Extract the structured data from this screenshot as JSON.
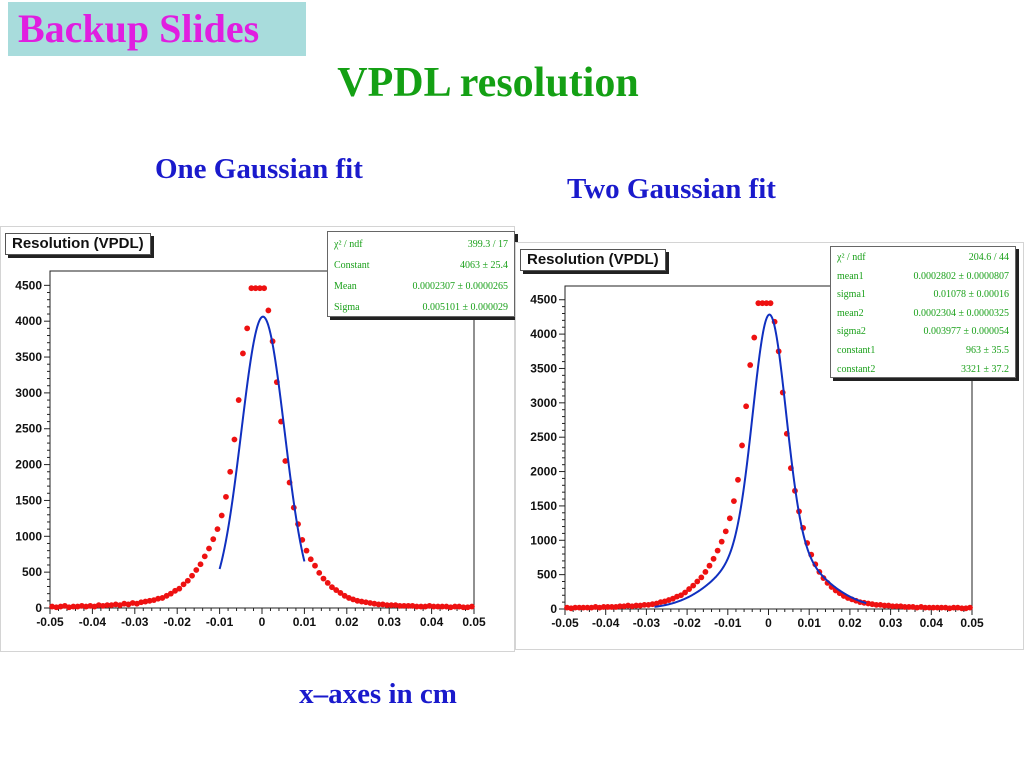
{
  "slide": {
    "tag": "Backup Slides",
    "title": "VPDL resolution",
    "footer": "x–axes in cm",
    "colors": {
      "tag_bg": "#a8dcdc",
      "tag_text": "#e01ee0",
      "title": "#14a014",
      "subtitle": "#1a1acc",
      "points": "#ee1111",
      "fit": "#1030c0",
      "stats_text": "#1aa01a"
    }
  },
  "panels": [
    {
      "subtitle": "One Gaussian fit",
      "plot_title": "Resolution (VPDL)",
      "stats": [
        {
          "label": "χ² / ndf",
          "value": "399.3 / 17"
        },
        {
          "label": "Constant",
          "value": "4063 ± 25.4"
        },
        {
          "label": "Mean",
          "value": "0.0002307 ± 0.0000265"
        },
        {
          "label": "Sigma",
          "value": "0.005101 ± 0.000029"
        }
      ]
    },
    {
      "subtitle": "Two Gaussian fit",
      "plot_title": "Resolution (VPDL)",
      "stats": [
        {
          "label": "χ² / ndf",
          "value": "204.6 / 44"
        },
        {
          "label": "mean1",
          "value": "0.0002802 ± 0.0000807"
        },
        {
          "label": "sigma1",
          "value": "0.01078 ± 0.00016"
        },
        {
          "label": "mean2",
          "value": "0.0002304 ± 0.0000325"
        },
        {
          "label": "sigma2",
          "value": "0.003977 ± 0.000054"
        },
        {
          "label": "constant1",
          "value": "963 ± 35.5"
        },
        {
          "label": "constant2",
          "value": "3321 ± 37.2"
        }
      ]
    }
  ],
  "chart_data": [
    {
      "type": "scatter",
      "title": "Resolution (VPDL)",
      "xlabel": "",
      "ylabel": "",
      "xlim": [
        -0.05,
        0.05
      ],
      "ylim": [
        0,
        4700
      ],
      "xticks": [
        "-0.05",
        "-0.04",
        "-0.03",
        "-0.02",
        "-0.01",
        "0",
        "0.01",
        "0.02",
        "0.03",
        "0.04",
        "0.05"
      ],
      "yticks": [
        "0",
        "500",
        "1000",
        "1500",
        "2000",
        "2500",
        "3000",
        "3500",
        "4000",
        "4500"
      ],
      "grid": false,
      "fit": {
        "function": "gauss",
        "constant": 4063,
        "mean": 0.0002307,
        "sigma": 0.005101,
        "range": [
          -0.01,
          0.01
        ]
      },
      "points": [
        [
          -0.0495,
          20
        ],
        [
          -0.0485,
          10
        ],
        [
          -0.0475,
          20
        ],
        [
          -0.0465,
          30
        ],
        [
          -0.0455,
          10
        ],
        [
          -0.0445,
          20
        ],
        [
          -0.0435,
          20
        ],
        [
          -0.0425,
          30
        ],
        [
          -0.0415,
          20
        ],
        [
          -0.0405,
          30
        ],
        [
          -0.0395,
          20
        ],
        [
          -0.0385,
          40
        ],
        [
          -0.0375,
          30
        ],
        [
          -0.0365,
          40
        ],
        [
          -0.0355,
          40
        ],
        [
          -0.0345,
          50
        ],
        [
          -0.0335,
          40
        ],
        [
          -0.0325,
          60
        ],
        [
          -0.0315,
          50
        ],
        [
          -0.0305,
          70
        ],
        [
          -0.0295,
          60
        ],
        [
          -0.0285,
          80
        ],
        [
          -0.0275,
          90
        ],
        [
          -0.0265,
          100
        ],
        [
          -0.0255,
          110
        ],
        [
          -0.0245,
          130
        ],
        [
          -0.0235,
          140
        ],
        [
          -0.0225,
          170
        ],
        [
          -0.0215,
          200
        ],
        [
          -0.0205,
          240
        ],
        [
          -0.0195,
          270
        ],
        [
          -0.0185,
          330
        ],
        [
          -0.0175,
          380
        ],
        [
          -0.0165,
          450
        ],
        [
          -0.0155,
          530
        ],
        [
          -0.0145,
          610
        ],
        [
          -0.0135,
          720
        ],
        [
          -0.0125,
          830
        ],
        [
          -0.0115,
          960
        ],
        [
          -0.0105,
          1100
        ],
        [
          -0.0095,
          1290
        ],
        [
          -0.0085,
          1550
        ],
        [
          -0.0075,
          1900
        ],
        [
          -0.0065,
          2350
        ],
        [
          -0.0055,
          2900
        ],
        [
          -0.0045,
          3550
        ],
        [
          -0.0035,
          3900
        ],
        [
          -0.0025,
          4460
        ],
        [
          -0.0015,
          4460
        ],
        [
          -0.0005,
          4460
        ],
        [
          0.0005,
          4460
        ],
        [
          0.0015,
          4150
        ],
        [
          0.0025,
          3720
        ],
        [
          0.0035,
          3150
        ],
        [
          0.0045,
          2600
        ],
        [
          0.0055,
          2050
        ],
        [
          0.0065,
          1750
        ],
        [
          0.0075,
          1400
        ],
        [
          0.0085,
          1170
        ],
        [
          0.0095,
          950
        ],
        [
          0.0105,
          800
        ],
        [
          0.0115,
          680
        ],
        [
          0.0125,
          590
        ],
        [
          0.0135,
          490
        ],
        [
          0.0145,
          410
        ],
        [
          0.0155,
          350
        ],
        [
          0.0165,
          290
        ],
        [
          0.0175,
          250
        ],
        [
          0.0185,
          210
        ],
        [
          0.0195,
          170
        ],
        [
          0.0205,
          140
        ],
        [
          0.0215,
          120
        ],
        [
          0.0225,
          100
        ],
        [
          0.0235,
          90
        ],
        [
          0.0245,
          80
        ],
        [
          0.0255,
          70
        ],
        [
          0.0265,
          60
        ],
        [
          0.0275,
          50
        ],
        [
          0.0285,
          50
        ],
        [
          0.0295,
          40
        ],
        [
          0.0305,
          40
        ],
        [
          0.0315,
          40
        ],
        [
          0.0325,
          30
        ],
        [
          0.0335,
          30
        ],
        [
          0.0345,
          30
        ],
        [
          0.0355,
          30
        ],
        [
          0.0365,
          20
        ],
        [
          0.0375,
          20
        ],
        [
          0.0385,
          20
        ],
        [
          0.0395,
          30
        ],
        [
          0.0405,
          20
        ],
        [
          0.0415,
          20
        ],
        [
          0.0425,
          20
        ],
        [
          0.0435,
          20
        ],
        [
          0.0445,
          10
        ],
        [
          0.0455,
          20
        ],
        [
          0.0465,
          20
        ],
        [
          0.0475,
          10
        ],
        [
          0.0485,
          10
        ],
        [
          0.0495,
          20
        ]
      ]
    },
    {
      "type": "scatter",
      "title": "Resolution (VPDL)",
      "xlabel": "",
      "ylabel": "",
      "xlim": [
        -0.05,
        0.05
      ],
      "ylim": [
        0,
        4700
      ],
      "xticks": [
        "-0.05",
        "-0.04",
        "-0.03",
        "-0.02",
        "-0.01",
        "0",
        "0.01",
        "0.02",
        "0.03",
        "0.04",
        "0.05"
      ],
      "yticks": [
        "0",
        "500",
        "1000",
        "1500",
        "2000",
        "2500",
        "3000",
        "3500",
        "4000",
        "4500"
      ],
      "grid": false,
      "fit": {
        "function": "double-gauss",
        "constant1": 963,
        "mean1": 0.0002802,
        "sigma1": 0.01078,
        "constant2": 3321,
        "mean2": 0.0002304,
        "sigma2": 0.003977,
        "range": [
          -0.028,
          0.024
        ]
      },
      "points": [
        [
          -0.0495,
          20
        ],
        [
          -0.0485,
          10
        ],
        [
          -0.0475,
          20
        ],
        [
          -0.0465,
          20
        ],
        [
          -0.0455,
          20
        ],
        [
          -0.0445,
          20
        ],
        [
          -0.0435,
          20
        ],
        [
          -0.0425,
          30
        ],
        [
          -0.0415,
          20
        ],
        [
          -0.0405,
          30
        ],
        [
          -0.0395,
          30
        ],
        [
          -0.0385,
          30
        ],
        [
          -0.0375,
          30
        ],
        [
          -0.0365,
          40
        ],
        [
          -0.0355,
          40
        ],
        [
          -0.0345,
          50
        ],
        [
          -0.0335,
          40
        ],
        [
          -0.0325,
          50
        ],
        [
          -0.0315,
          50
        ],
        [
          -0.0305,
          60
        ],
        [
          -0.0295,
          60
        ],
        [
          -0.0285,
          70
        ],
        [
          -0.0275,
          80
        ],
        [
          -0.0265,
          100
        ],
        [
          -0.0255,
          110
        ],
        [
          -0.0245,
          130
        ],
        [
          -0.0235,
          150
        ],
        [
          -0.0225,
          180
        ],
        [
          -0.0215,
          200
        ],
        [
          -0.0205,
          240
        ],
        [
          -0.0195,
          290
        ],
        [
          -0.0185,
          340
        ],
        [
          -0.0175,
          400
        ],
        [
          -0.0165,
          460
        ],
        [
          -0.0155,
          540
        ],
        [
          -0.0145,
          630
        ],
        [
          -0.0135,
          730
        ],
        [
          -0.0125,
          850
        ],
        [
          -0.0115,
          980
        ],
        [
          -0.0105,
          1130
        ],
        [
          -0.0095,
          1320
        ],
        [
          -0.0085,
          1570
        ],
        [
          -0.0075,
          1880
        ],
        [
          -0.0065,
          2380
        ],
        [
          -0.0055,
          2950
        ],
        [
          -0.0045,
          3550
        ],
        [
          -0.0035,
          3950
        ],
        [
          -0.0025,
          4450
        ],
        [
          -0.0015,
          4450
        ],
        [
          -0.0005,
          4450
        ],
        [
          0.0005,
          4450
        ],
        [
          0.0015,
          4180
        ],
        [
          0.0025,
          3750
        ],
        [
          0.0035,
          3150
        ],
        [
          0.0045,
          2550
        ],
        [
          0.0055,
          2050
        ],
        [
          0.0065,
          1720
        ],
        [
          0.0075,
          1420
        ],
        [
          0.0085,
          1180
        ],
        [
          0.0095,
          960
        ],
        [
          0.0105,
          790
        ],
        [
          0.0115,
          650
        ],
        [
          0.0125,
          540
        ],
        [
          0.0135,
          450
        ],
        [
          0.0145,
          380
        ],
        [
          0.0155,
          320
        ],
        [
          0.0165,
          270
        ],
        [
          0.0175,
          230
        ],
        [
          0.0185,
          190
        ],
        [
          0.0195,
          160
        ],
        [
          0.0205,
          140
        ],
        [
          0.0215,
          120
        ],
        [
          0.0225,
          100
        ],
        [
          0.0235,
          90
        ],
        [
          0.0245,
          80
        ],
        [
          0.0255,
          70
        ],
        [
          0.0265,
          60
        ],
        [
          0.0275,
          60
        ],
        [
          0.0285,
          50
        ],
        [
          0.0295,
          50
        ],
        [
          0.0305,
          40
        ],
        [
          0.0315,
          40
        ],
        [
          0.0325,
          40
        ],
        [
          0.0335,
          30
        ],
        [
          0.0345,
          30
        ],
        [
          0.0355,
          30
        ],
        [
          0.0365,
          20
        ],
        [
          0.0375,
          30
        ],
        [
          0.0385,
          20
        ],
        [
          0.0395,
          20
        ],
        [
          0.0405,
          20
        ],
        [
          0.0415,
          20
        ],
        [
          0.0425,
          20
        ],
        [
          0.0435,
          20
        ],
        [
          0.0445,
          10
        ],
        [
          0.0455,
          20
        ],
        [
          0.0465,
          20
        ],
        [
          0.0475,
          10
        ],
        [
          0.0485,
          10
        ],
        [
          0.0495,
          20
        ]
      ]
    }
  ]
}
